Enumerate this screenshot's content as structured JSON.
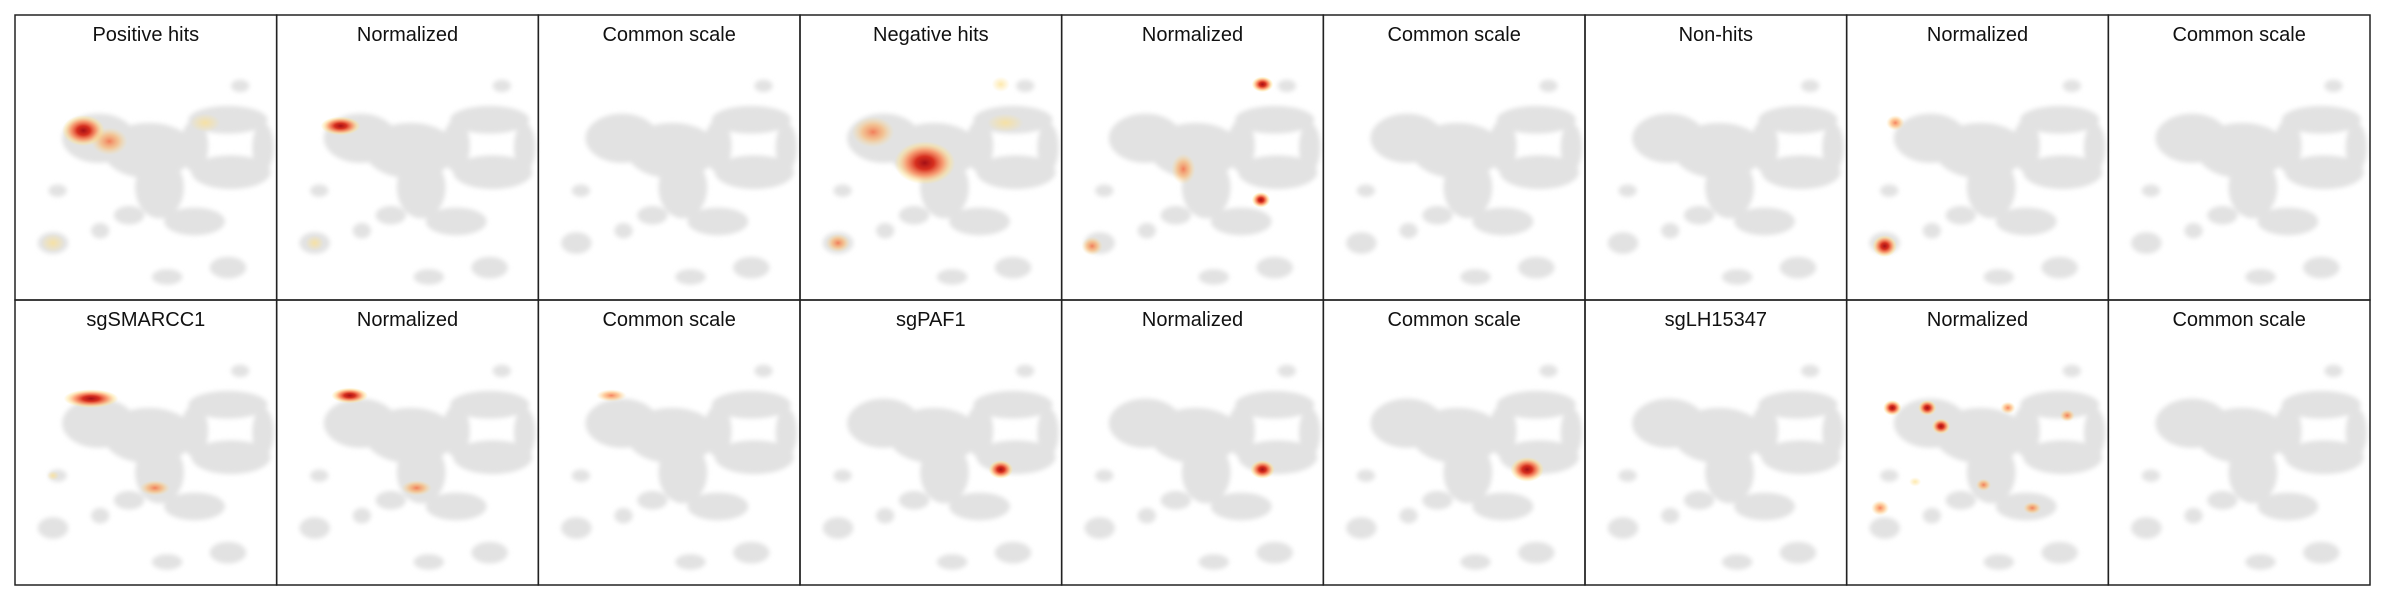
{
  "rows": [
    [
      "Positive hits",
      "Normalized",
      "Common scale",
      "Negative hits",
      "Normalized",
      "Common scale",
      "Non-hits",
      "Normalized",
      "Common scale"
    ],
    [
      "sgSMARCC1",
      "Normalized",
      "Common scale",
      "sgPAF1",
      "Normalized",
      "Common scale",
      "sgLH15347",
      "Normalized",
      "Common scale"
    ]
  ]
}
